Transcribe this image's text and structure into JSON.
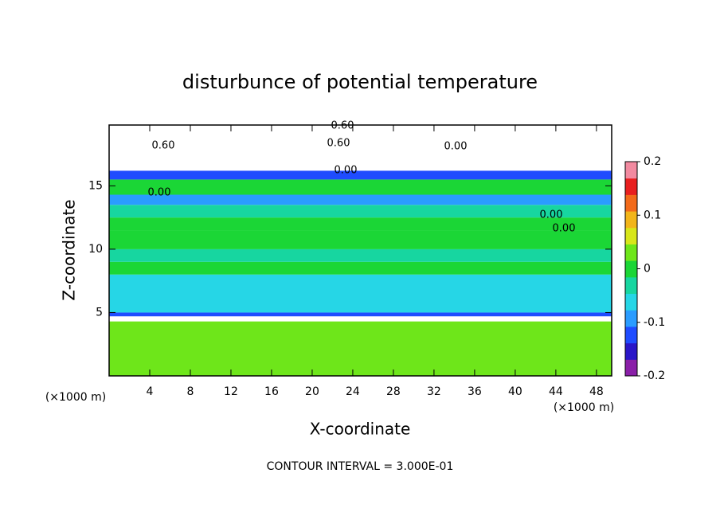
{
  "chart_data": {
    "type": "contour",
    "title": "disturbunce of potential temperature",
    "x_label": "X-coordinate",
    "y_label": "Z-coordinate",
    "x_unit_label": "(×1000 m)",
    "y_unit_label": "(×1000 m)",
    "footer": "CONTOUR INTERVAL = 3.000E-01",
    "xlim": [
      0,
      49.5
    ],
    "ylim": [
      0,
      19.8
    ],
    "xticks": [
      4,
      8,
      12,
      16,
      20,
      24,
      28,
      32,
      36,
      40,
      44,
      48
    ],
    "yticks": [
      5,
      10,
      15
    ],
    "field": {
      "z": [
        0,
        4.3,
        4.7,
        5,
        8,
        9,
        10,
        11.5,
        12.5,
        13.5,
        14.3,
        15.5,
        16.2,
        19.8
      ],
      "values": [
        0.02,
        0.3,
        -0.12,
        -0.05,
        0.0,
        -0.04,
        0.01,
        0.0,
        -0.04,
        -0.08,
        0.01,
        -0.12,
        0.3
      ]
    },
    "clim": [
      -0.2,
      0.2
    ],
    "colorbar_ticks": [
      0.2,
      0.1,
      0,
      -0.1,
      -0.2
    ],
    "colormap": [
      "#8a1fa8",
      "#2a16c8",
      "#1f4cff",
      "#2a9cff",
      "#26d6e6",
      "#17d6a0",
      "#1bd636",
      "#6ee61a",
      "#d8e61a",
      "#f2b51a",
      "#f26a1a",
      "#e81f1f",
      "#f28aa0"
    ],
    "over_color": "#ffffff",
    "contour_labels": [
      "0.60",
      "0.60",
      "0.60",
      "0.00",
      "0.00",
      "0.00",
      "0.00",
      "0.00"
    ]
  }
}
